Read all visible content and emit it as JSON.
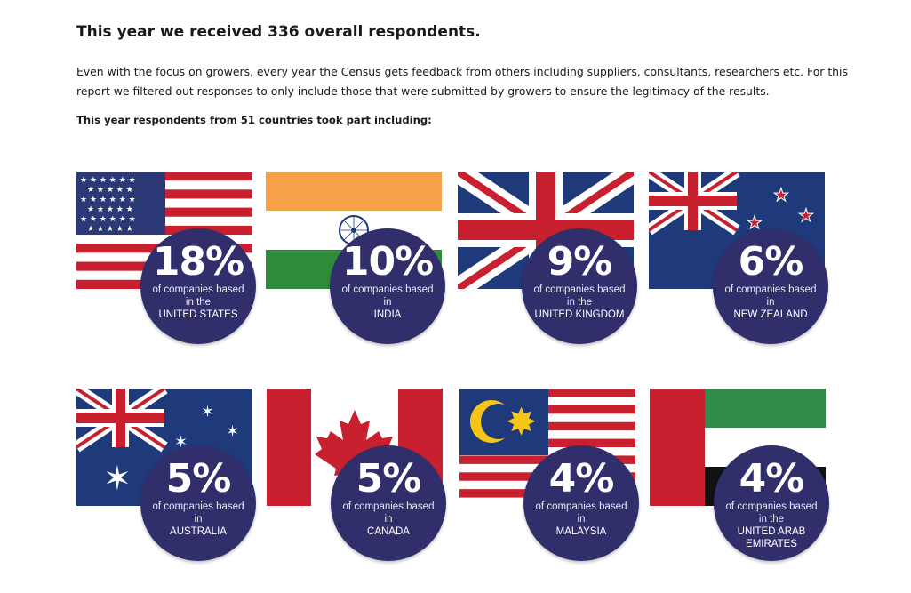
{
  "header": {
    "title": "This year we received 336 overall respondents.",
    "intro": "Even with the focus on growers, every year the Census gets feedback from others including suppliers, consultants, researchers etc. For this report we filtered out responses to only include those that were submitted by  growers to ensure the legitimacy of the results.",
    "subtitle": "This year respondents from 51 countries took part including:"
  },
  "cards": [
    {
      "country": "UNITED STATES",
      "percent": "18%",
      "caption": "of companies based in the",
      "flag_icon": "us-flag-icon"
    },
    {
      "country": "INDIA",
      "percent": "10%",
      "caption": "of companies based in",
      "flag_icon": "india-flag-icon"
    },
    {
      "country": "UNITED KINGDOM",
      "percent": "9%",
      "caption": "of companies based in the",
      "flag_icon": "uk-flag-icon"
    },
    {
      "country": "NEW ZEALAND",
      "percent": "6%",
      "caption": "of companies based in",
      "flag_icon": "new-zealand-flag-icon"
    },
    {
      "country": "AUSTRALIA",
      "percent": "5%",
      "caption": "of companies based in",
      "flag_icon": "australia-flag-icon"
    },
    {
      "country": "CANADA",
      "percent": "5%",
      "caption": "of companies based in",
      "flag_icon": "canada-flag-icon"
    },
    {
      "country": "MALAYSIA",
      "percent": "4%",
      "caption": "of companies based in",
      "flag_icon": "malaysia-flag-icon"
    },
    {
      "country": "UNITED ARAB EMIRATES",
      "percent": "4%",
      "caption": "of companies based in the",
      "flag_icon": "uae-flag-icon"
    }
  ],
  "colors": {
    "badge": "#302f6b",
    "flag_red": "#c8202f",
    "flag_blue": "#2b3a77",
    "uk_blue": "#1f3a7a",
    "india_saffron": "#f6a04a",
    "india_green": "#2e8b3a",
    "uae_green": "#2e8b4a"
  }
}
